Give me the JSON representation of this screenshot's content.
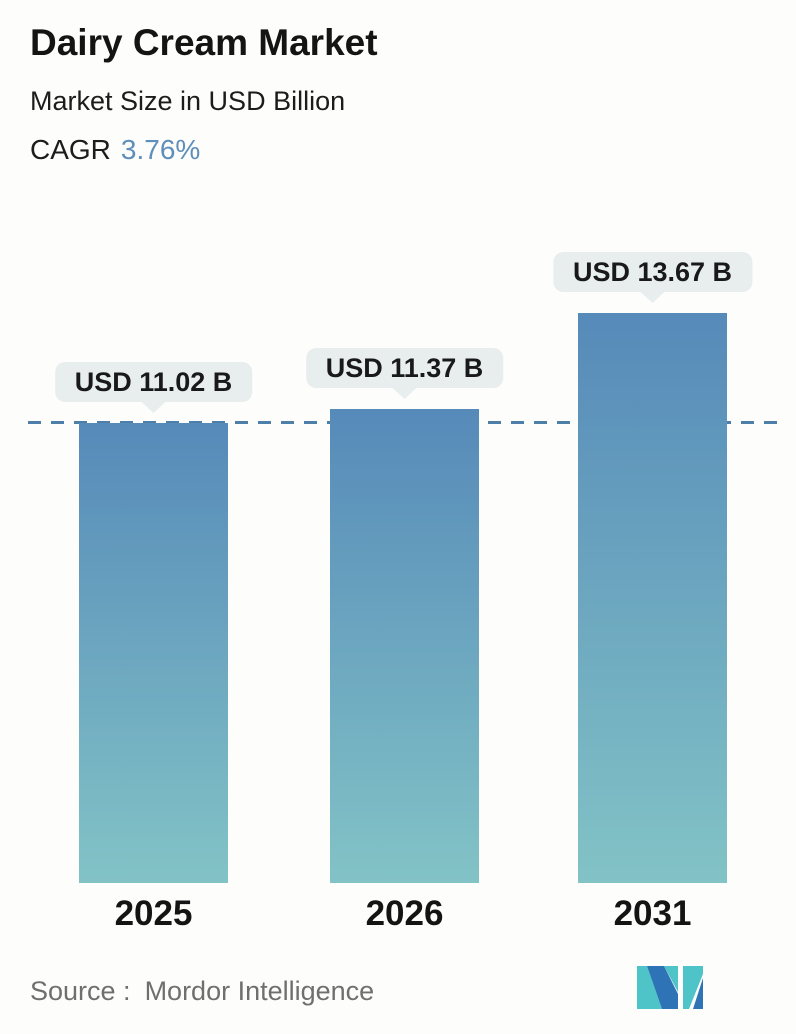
{
  "header": {
    "title": "Dairy Cream Market",
    "subtitle": "Market Size in USD Billion",
    "cagr_label": "CAGR",
    "cagr_value": "3.76%"
  },
  "chart_data": {
    "type": "bar",
    "title": "Dairy Cream Market",
    "ylabel": "Market Size in USD Billion",
    "cagr": "3.76%",
    "categories": [
      "2025",
      "2026",
      "2031"
    ],
    "values": [
      11.02,
      11.37,
      13.67
    ],
    "bar_labels": [
      "USD 11.02 B",
      "USD 11.37 B",
      "USD 13.67 B"
    ],
    "dashed_line_value": 11.02,
    "ylim": [
      0,
      14.5
    ],
    "grid": false,
    "legend": "none",
    "colors": {
      "bar_gradient_top": "#568ab9",
      "bar_gradient_bottom": "#82c3c6",
      "dashed_line": "#4d7fa9",
      "bubble_bg": "#e8eeee",
      "cagr_value": "#5e8fba",
      "text": "#141414",
      "source_text": "#6f6f6f",
      "logo_teal": "#4ec3c8",
      "logo_blue": "#2d73b5"
    }
  },
  "footer": {
    "source_label": "Source :",
    "source_value": "Mordor Intelligence",
    "logo": "mordor-intelligence-logo"
  }
}
